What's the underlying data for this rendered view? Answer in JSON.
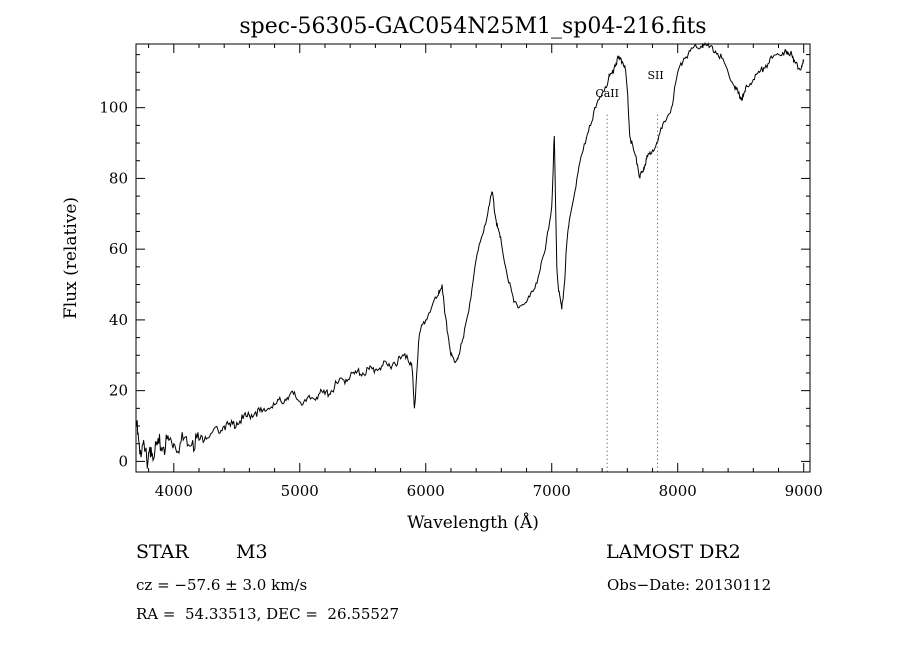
{
  "chart_data": {
    "type": "line",
    "title": "spec-56305-GAC054N25M1_sp04-216.fits",
    "xlabel": "Wavelength (Å)",
    "ylabel": "Flux (relative)",
    "xlim": [
      3700,
      9050
    ],
    "ylim": [
      -3,
      118
    ],
    "xticks": [
      4000,
      5000,
      6000,
      7000,
      8000,
      9000
    ],
    "yticks": [
      0,
      20,
      40,
      60,
      80,
      100
    ],
    "grid": false,
    "line_color": "#000000",
    "annotation_color": "#dd0000",
    "lines": [
      {
        "label": "CaII",
        "x": 7440
      },
      {
        "label": "SII",
        "x": 7840
      }
    ],
    "series": [
      {
        "x": [
          3705,
          3730,
          3760,
          3790,
          3820,
          3850,
          3880,
          3920,
          3960,
          4000,
          4050,
          4100,
          4150,
          4200,
          4250,
          4300,
          4350,
          4400,
          4450,
          4500,
          4550,
          4600,
          4650,
          4700,
          4750,
          4800,
          4850,
          4900,
          4950,
          5000,
          5050,
          5100,
          5150,
          5200,
          5250,
          5300,
          5350,
          5400,
          5450,
          5500,
          5550,
          5600,
          5650,
          5700,
          5750,
          5800,
          5850,
          5880,
          5895,
          5910,
          5950,
          6000,
          6050,
          6100,
          6130,
          6150,
          6180,
          6200,
          6230,
          6260,
          6300,
          6350,
          6400,
          6450,
          6500,
          6530,
          6550,
          6570,
          6600,
          6650,
          6700,
          6750,
          6800,
          6850,
          6900,
          6950,
          7000,
          7020,
          7040,
          7055,
          7080,
          7100,
          7120,
          7150,
          7200,
          7250,
          7300,
          7350,
          7400,
          7450,
          7480,
          7500,
          7530,
          7560,
          7580,
          7600,
          7620,
          7650,
          7680,
          7700,
          7720,
          7740,
          7760,
          7800,
          7850,
          7900,
          7950,
          8000,
          8050,
          8100,
          8150,
          8200,
          8250,
          8300,
          8350,
          8400,
          8450,
          8480,
          8500,
          8520,
          8550,
          8600,
          8650,
          8700,
          8750,
          8800,
          8850,
          8870,
          8900,
          8920,
          8950,
          8980,
          9000
        ],
        "y": [
          10,
          2,
          6,
          -2,
          4,
          3,
          5,
          4,
          6,
          5,
          5,
          7,
          6,
          6,
          7,
          8,
          9,
          10,
          10,
          11,
          12,
          13,
          14,
          14,
          15,
          16,
          17,
          18,
          19,
          17,
          17,
          18,
          19,
          19,
          20,
          22,
          23,
          24,
          25,
          25,
          26,
          26,
          27,
          27,
          28,
          29,
          30,
          28,
          25,
          15,
          36,
          40,
          44,
          47,
          50,
          42,
          35,
          30,
          28,
          30,
          35,
          45,
          57,
          64,
          72,
          76,
          70,
          66,
          62,
          52,
          45,
          44,
          45,
          48,
          53,
          60,
          72,
          92,
          55,
          48,
          43,
          50,
          62,
          70,
          80,
          88,
          95,
          100,
          104,
          108,
          110,
          112,
          114,
          113,
          112,
          105,
          92,
          88,
          84,
          80,
          82,
          84,
          86,
          88,
          92,
          96,
          100,
          110,
          114,
          116,
          117,
          118,
          117,
          116,
          114,
          110,
          106,
          104,
          103,
          103,
          106,
          108,
          110,
          112,
          114,
          115,
          116,
          115,
          116,
          113,
          112,
          111,
          113
        ]
      }
    ]
  },
  "info": {
    "object_class": "STAR",
    "subclass": "M3",
    "survey": "LAMOST DR2",
    "cz": "cz = −57.6 ± 3.0 km/s",
    "obs_date": "Obs−Date: 20130112",
    "coords": "RA =  54.33513, DEC =  26.55527"
  }
}
